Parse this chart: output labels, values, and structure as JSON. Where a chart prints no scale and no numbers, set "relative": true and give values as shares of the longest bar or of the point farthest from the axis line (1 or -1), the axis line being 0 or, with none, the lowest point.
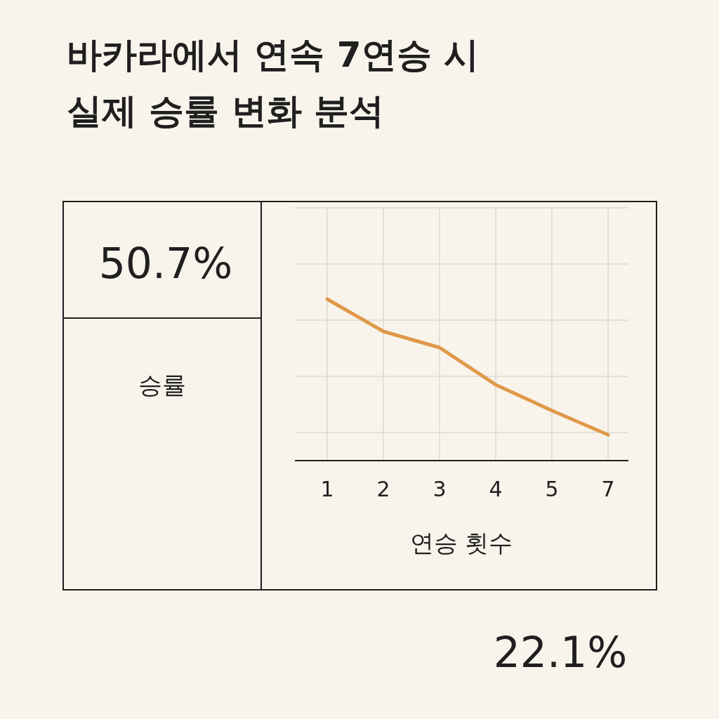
{
  "chart_data": {
    "type": "line",
    "title": "바카라에서 연속 7연승 시\n실제 승률 변화 분석",
    "xlabel": "연승 횟수",
    "ylabel": "승률",
    "categories": [
      "1",
      "2",
      "3",
      "4",
      "5",
      "7"
    ],
    "series": [
      {
        "color": "#e0994a",
        "values": [
          1,
          0.8,
          0.7,
          0.47,
          0.31,
          0.16
        ]
      }
    ],
    "relative": true,
    "grid": true,
    "marker": "none",
    "line_style": "solid",
    "annotations": [
      "50.7%",
      "22.1%"
    ]
  }
}
